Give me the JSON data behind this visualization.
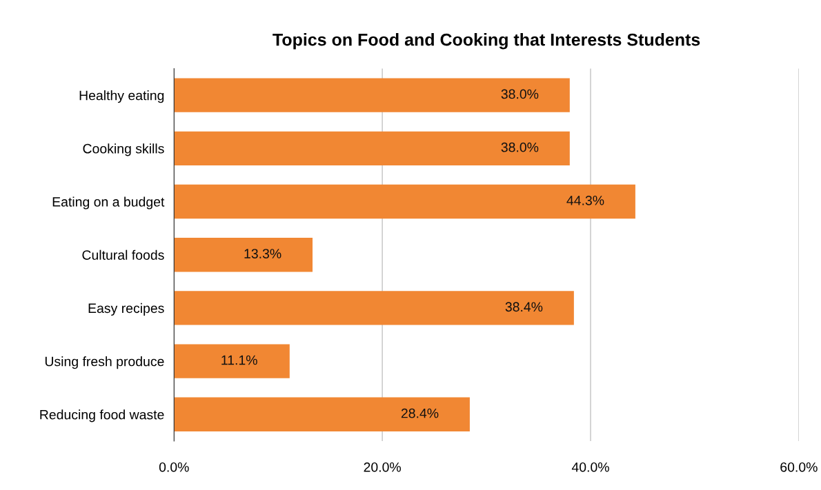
{
  "chart_data": {
    "type": "bar",
    "orientation": "horizontal",
    "title": "Topics on Food and Cooking that Interests Students",
    "categories": [
      "Healthy eating",
      "Cooking skills",
      "Eating on a budget",
      "Cultural foods",
      "Easy recipes",
      "Using fresh produce",
      "Reducing food waste"
    ],
    "values": [
      38.0,
      38.0,
      44.3,
      13.3,
      38.4,
      11.1,
      28.4
    ],
    "value_labels": [
      "38.0%",
      "38.0%",
      "44.3%",
      "13.3%",
      "38.4%",
      "11.1%",
      "28.4%"
    ],
    "color": "#f18733",
    "xlim": [
      0,
      60
    ],
    "xticks": [
      {
        "value": 0,
        "label": "0.0%"
      },
      {
        "value": 20,
        "label": "20.0%"
      },
      {
        "value": 40,
        "label": "40.0%"
      },
      {
        "value": 60,
        "label": "60.0%"
      }
    ],
    "grid": "x"
  }
}
